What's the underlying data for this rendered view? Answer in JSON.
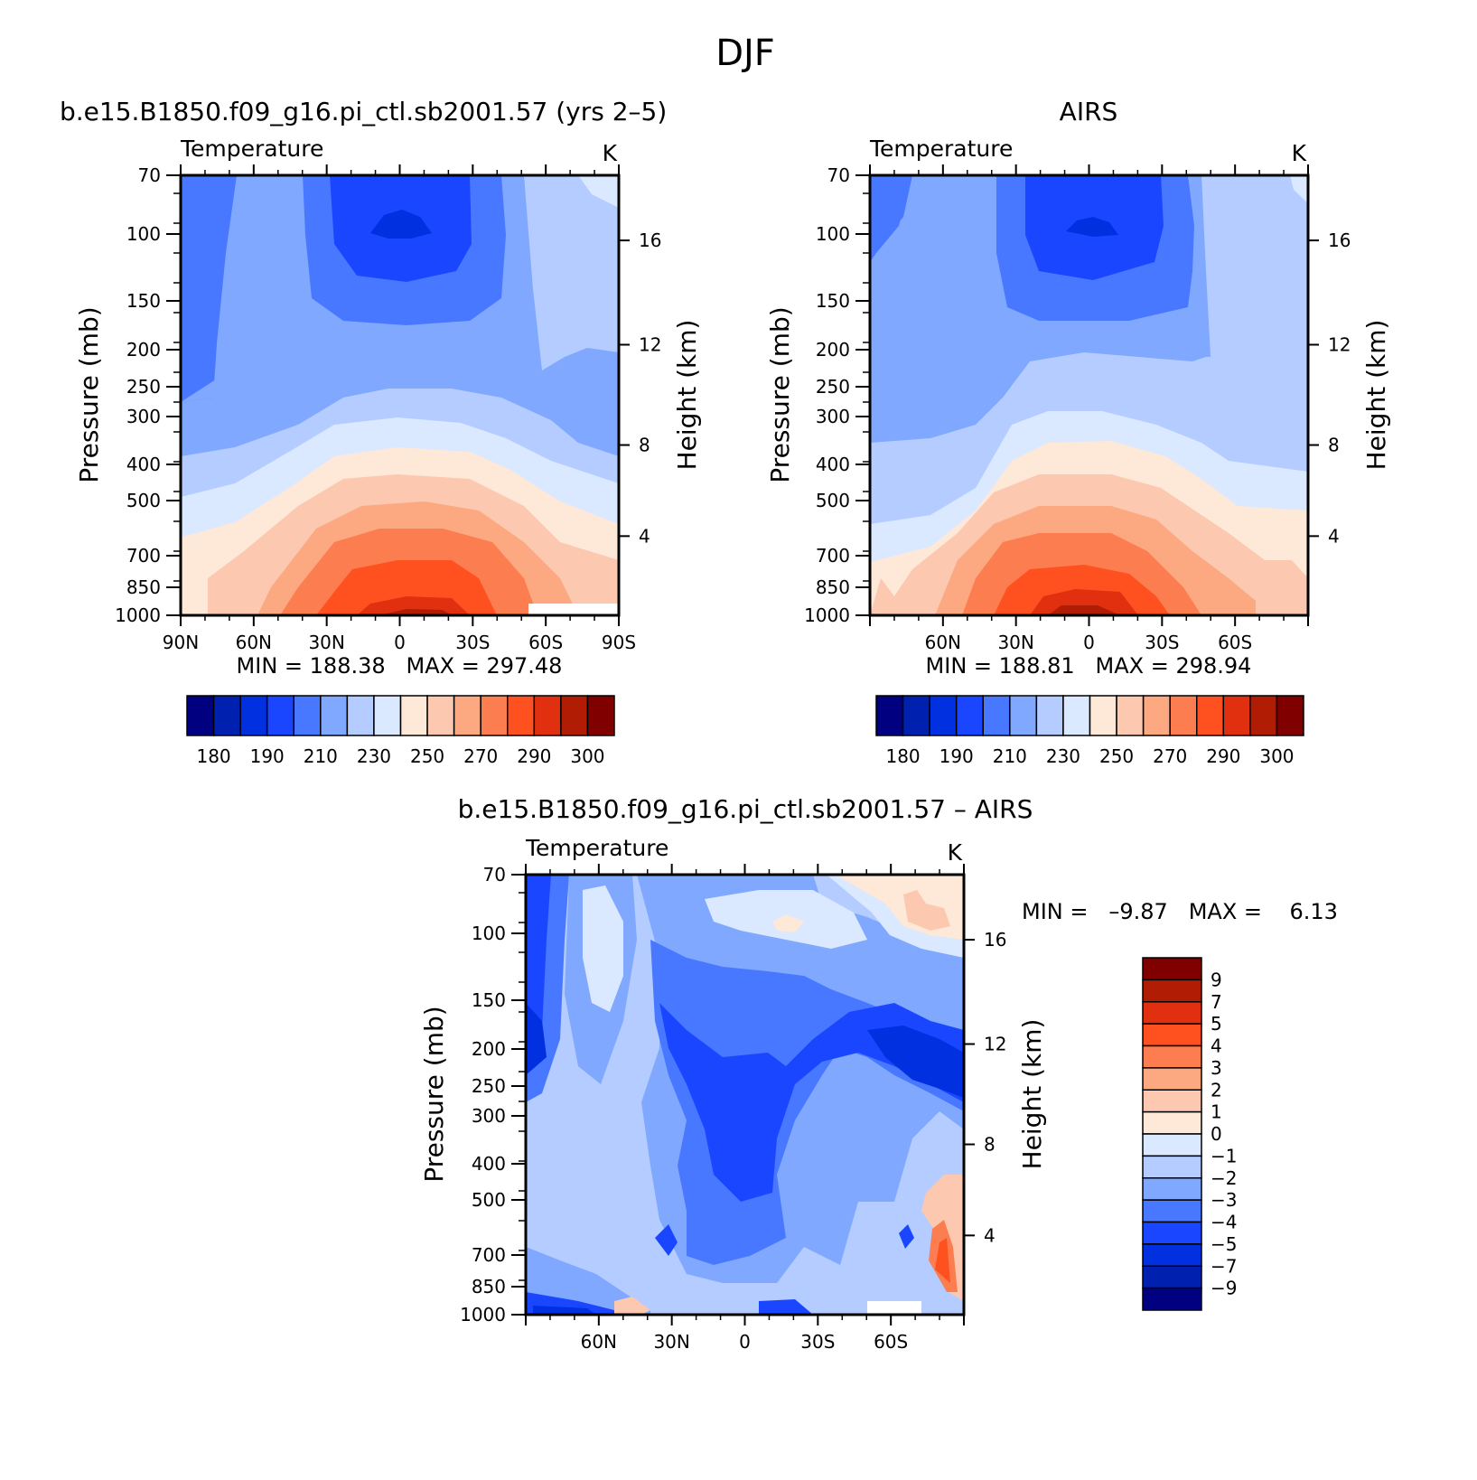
{
  "figure": {
    "title": "DJF"
  },
  "panels": [
    {
      "id": "model",
      "title": "b.e15.B1850.f09_g16.pi_ctl.sb2001.57 (yrs 2–5)",
      "left_label": "Temperature",
      "right_label": "K",
      "ylabel": "Pressure (mb)",
      "ylabel_right": "Height (km)",
      "min_max": "MIN = 188.38   MAX = 297.48"
    },
    {
      "id": "obs",
      "title": "AIRS",
      "left_label": "Temperature",
      "right_label": "K",
      "ylabel": "Pressure (mb)",
      "ylabel_right": "Height (km)",
      "min_max": "MIN = 188.81   MAX = 298.94"
    },
    {
      "id": "diff",
      "title": "b.e15.B1850.f09_g16.pi_ctl.sb2001.57 – AIRS",
      "left_label": "Temperature",
      "right_label": "K",
      "ylabel": "Pressure (mb)",
      "ylabel_right": "Height (km)",
      "min_max": "MIN =   –9.87   MAX =    6.13"
    }
  ],
  "axes": {
    "pressure_ticks": [
      70,
      100,
      150,
      200,
      250,
      300,
      300,
      400,
      500,
      700,
      850,
      1000
    ],
    "height_ticks": [
      16,
      12,
      8,
      4
    ],
    "lat_ticks_full": [
      "90N",
      "60N",
      "30N",
      "0",
      "30S",
      "60S",
      "90S"
    ],
    "lat_ticks_inner": [
      "60N",
      "30N",
      "0",
      "30S",
      "60S"
    ]
  },
  "colorbars": {
    "abs_labels": [
      "180",
      "190",
      "210",
      "230",
      "250",
      "270",
      "290",
      "300"
    ],
    "diff_labels": [
      "9",
      "7",
      "5",
      "4",
      "3",
      "2",
      "1",
      "0",
      "−1",
      "−2",
      "−3",
      "−4",
      "−5",
      "−7",
      "−9"
    ],
    "abs_colors": [
      "#000080",
      "#0020b0",
      "#0030e0",
      "#1a46ff",
      "#4878ff",
      "#80a8ff",
      "#b4ccff",
      "#dae9ff",
      "#fee8d8",
      "#fcc8b0",
      "#fca880",
      "#fc7e50",
      "#ff5020",
      "#e03010",
      "#b01c04",
      "#800000"
    ],
    "diff_colors": [
      "#800000",
      "#b01c04",
      "#e03010",
      "#ff5020",
      "#fc7e50",
      "#fca880",
      "#fcc8b0",
      "#fee8d8",
      "#dae9ff",
      "#b4ccff",
      "#80a8ff",
      "#4878ff",
      "#1a46ff",
      "#0030e0",
      "#0020b0",
      "#000080"
    ]
  },
  "chart_data": [
    {
      "type": "heatmap",
      "title": "b.e15.B1850.f09_g16.pi_ctl.sb2001.57 (yrs 2–5)",
      "variable": "Temperature",
      "units": "K",
      "ylabel": "Pressure (mb)",
      "x": [
        "90N",
        "60N",
        "30N",
        "0",
        "30S",
        "60S",
        "90S"
      ],
      "y": [
        70,
        100,
        150,
        200,
        300,
        500,
        700,
        850,
        1000
      ],
      "min": 188.38,
      "max": 297.48,
      "levels": [
        180,
        190,
        210,
        230,
        250,
        270,
        290,
        300
      ]
    },
    {
      "type": "heatmap",
      "title": "AIRS",
      "variable": "Temperature",
      "units": "K",
      "ylabel": "Pressure (mb)",
      "x": [
        "60N",
        "30N",
        "0",
        "30S",
        "60S"
      ],
      "y": [
        70,
        100,
        150,
        200,
        300,
        500,
        700,
        850,
        1000
      ],
      "min": 188.81,
      "max": 298.94,
      "levels": [
        180,
        190,
        210,
        230,
        250,
        270,
        290,
        300
      ]
    },
    {
      "type": "heatmap",
      "title": "b.e15.B1850.f09_g16.pi_ctl.sb2001.57 – AIRS",
      "variable": "Temperature",
      "units": "K",
      "ylabel": "Pressure (mb)",
      "x": [
        "60N",
        "30N",
        "0",
        "30S",
        "60S"
      ],
      "y": [
        70,
        100,
        150,
        200,
        300,
        500,
        700,
        850,
        1000
      ],
      "min": -9.87,
      "max": 6.13,
      "levels": [
        -9,
        -7,
        -5,
        -4,
        -3,
        -2,
        -1,
        0,
        1,
        2,
        3,
        4,
        5,
        7,
        9
      ]
    }
  ]
}
